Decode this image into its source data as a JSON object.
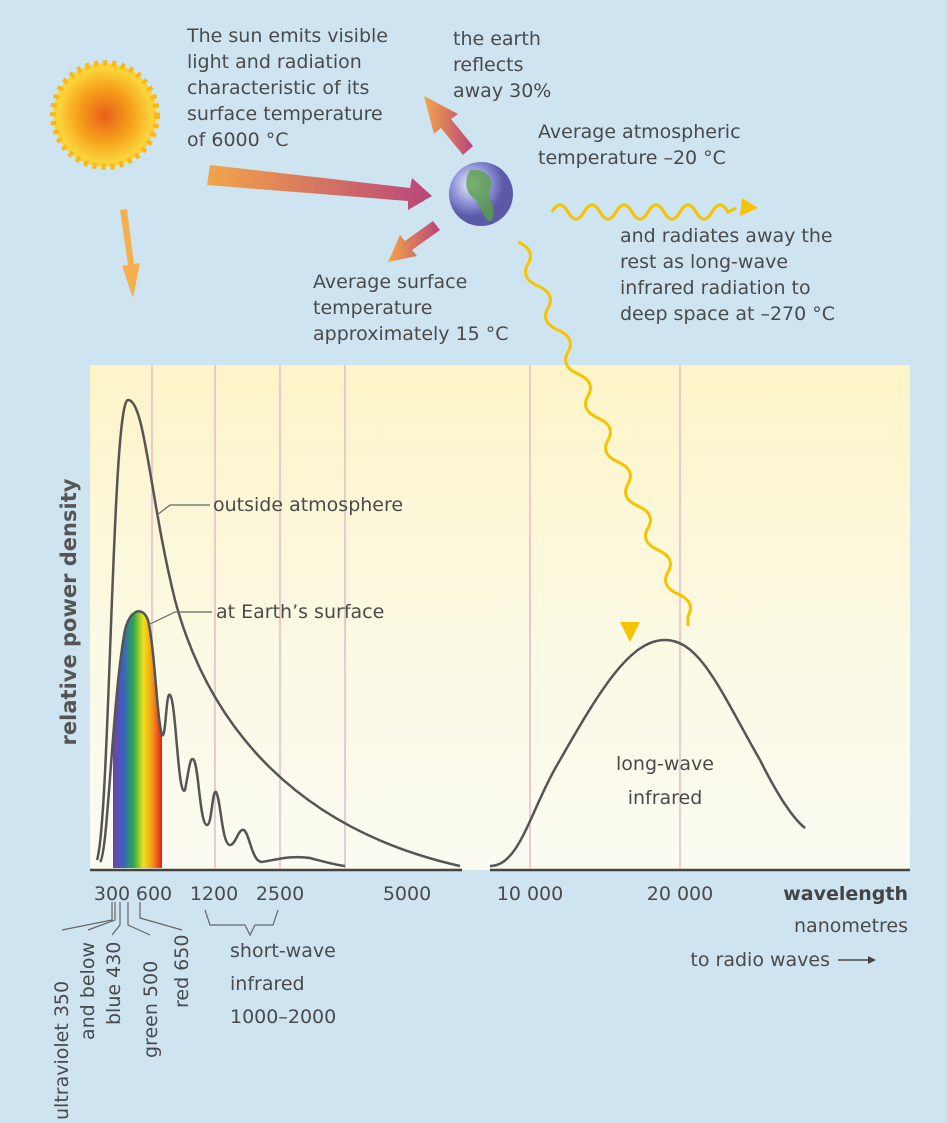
{
  "sun_text": [
    "The sun emits visible",
    "light and radiation",
    "characteristic of its",
    "surface temperature",
    "of 6000 °C"
  ],
  "reflect_text": [
    "the earth",
    "reflects",
    "away 30%"
  ],
  "atmos_text": [
    "Average atmospheric",
    "temperature –20 °C"
  ],
  "radiate_text": [
    "and radiates away the",
    "rest as long-wave",
    "infrared radiation to",
    "deep space at –270 °C"
  ],
  "surface_text": [
    "Average surface",
    "temperature",
    "approximately 15 °C"
  ],
  "y_label": "relative power density",
  "curve_labels": {
    "outside": "outside atmosphere",
    "surface": "at Earth’s surface",
    "longwave": [
      "long-wave",
      "infrared"
    ]
  },
  "x_ticks": [
    "300",
    "600",
    "1200",
    "2500",
    "5000",
    "10 000",
    "20 000"
  ],
  "x_label": "wavelength",
  "x_unit": "nanometres",
  "bands": [
    "ultraviolet 350",
    "and below",
    "blue 430",
    "green 500",
    "red 650"
  ],
  "short_wave": [
    "short-wave",
    "infrared",
    "1000–2000"
  ],
  "radio": "to radio waves"
}
